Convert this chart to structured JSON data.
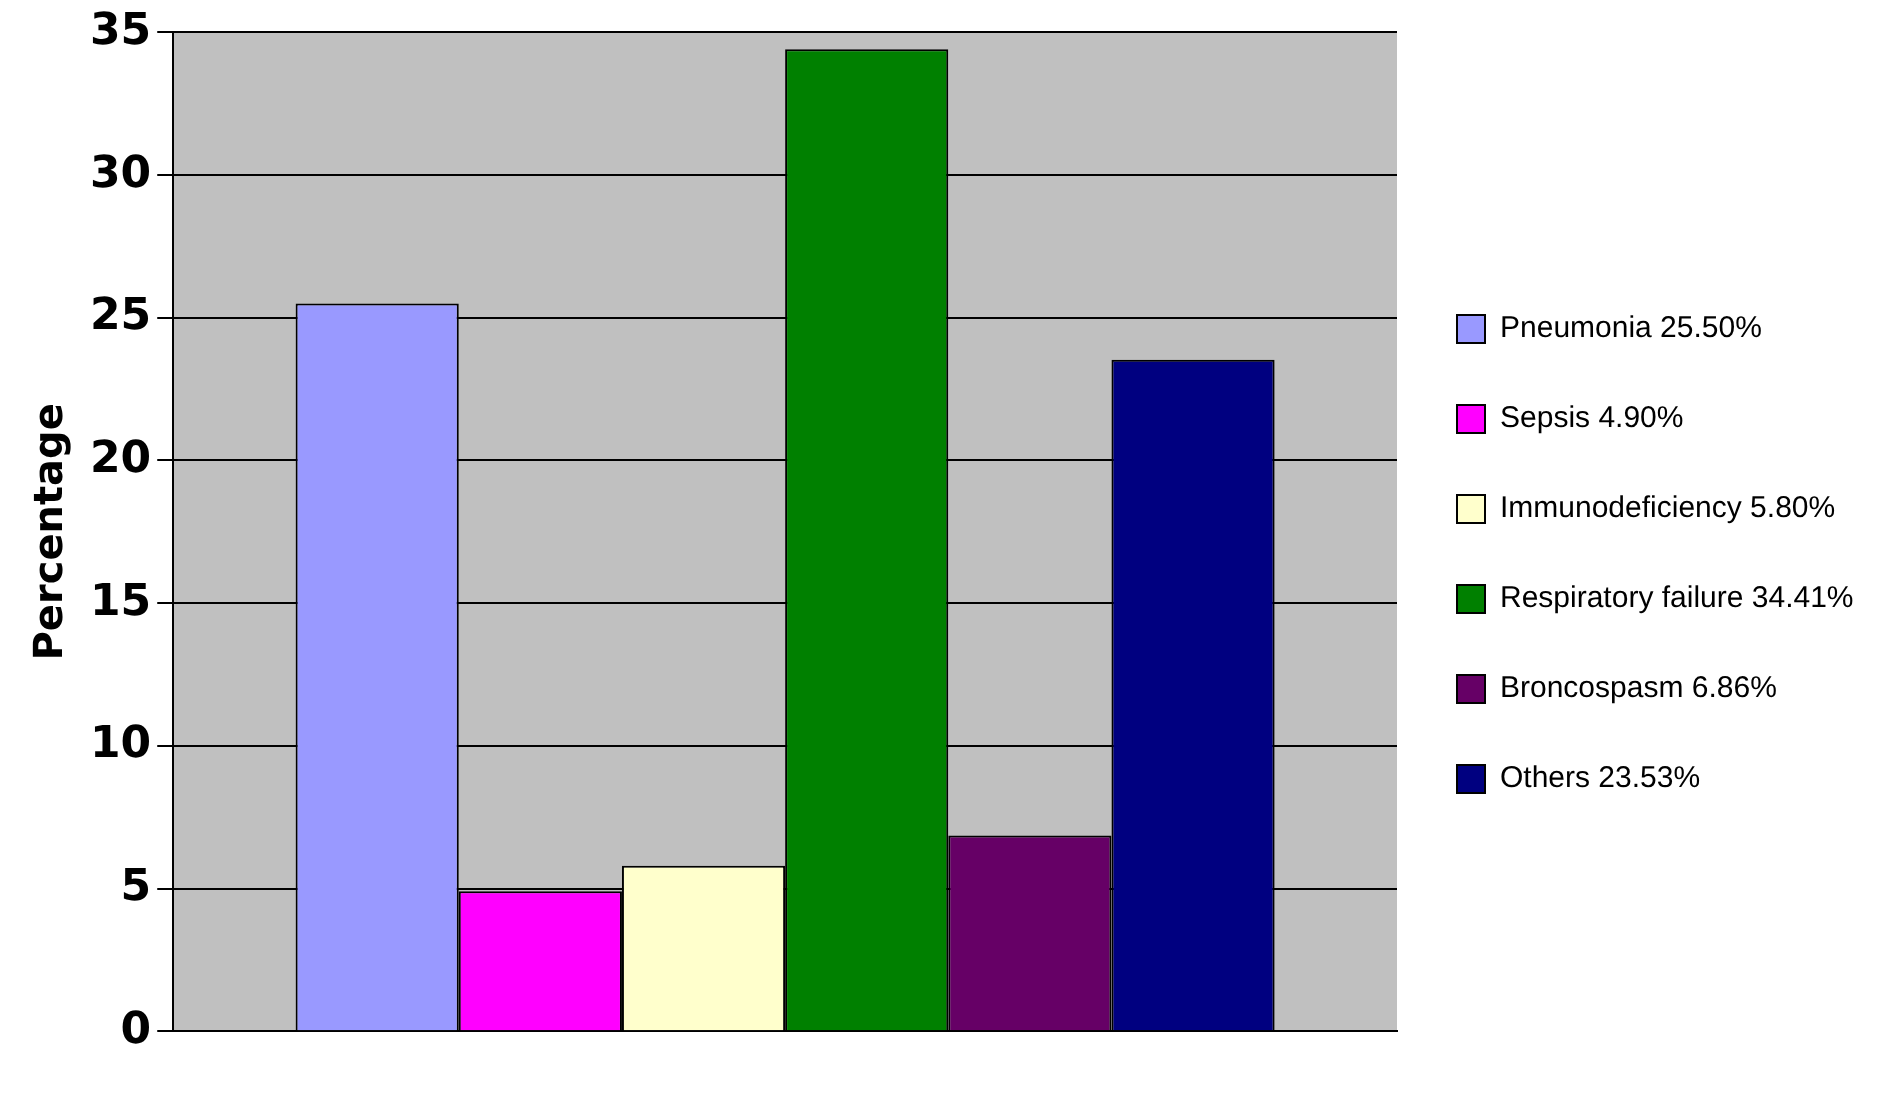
{
  "chart_data": {
    "type": "bar",
    "ylabel": "Percentage",
    "categories": [
      null
    ],
    "series": [
      {
        "name": "Pneumonia 25.50%",
        "color": "#9999ff",
        "values": [
          25.5
        ]
      },
      {
        "name": "Sepsis 4.90%",
        "color": "#ff00ff",
        "values": [
          4.9
        ]
      },
      {
        "name": "Immunodeficiency 5.80%",
        "color": "#ffffcc",
        "values": [
          5.8
        ]
      },
      {
        "name": "Respiratory failure 34.41%",
        "color": "#008000",
        "values": [
          34.41
        ]
      },
      {
        "name": "Broncospasm 6.86%",
        "color": "#660066",
        "values": [
          6.86
        ]
      },
      {
        "name": "Others 23.53%",
        "color": "#000080",
        "values": [
          23.53
        ]
      }
    ],
    "ylim": [
      0,
      35
    ],
    "yticks": [
      0,
      5,
      10,
      15,
      20,
      25,
      30,
      35
    ],
    "grid": "y",
    "legend": "right"
  }
}
